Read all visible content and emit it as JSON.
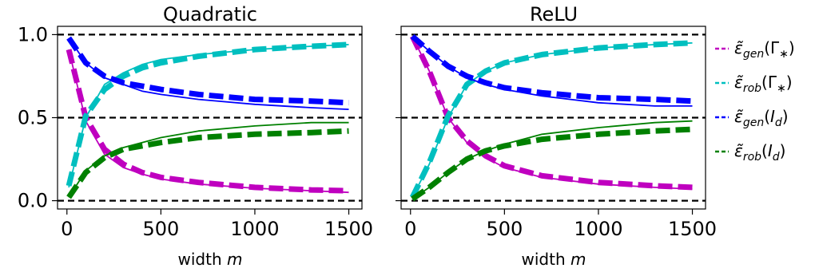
{
  "chart_data": [
    {
      "type": "line",
      "title": "Quadratic",
      "xlabel": "width m",
      "ylabel": "",
      "xlim": [
        -50,
        1570
      ],
      "ylim": [
        -0.05,
        1.05
      ],
      "xticks": [
        0,
        500,
        1000,
        1500
      ],
      "yticks": [
        0.0,
        0.5,
        1.0
      ],
      "reference_lines": [
        0.0,
        0.5,
        1.0
      ],
      "series": [
        {
          "name": "ε̃_gen(Γ*)",
          "color": "#bf00bf",
          "style": "solid-thin",
          "x": [
            10,
            100,
            200,
            300,
            400,
            500,
            700,
            1000,
            1300,
            1500
          ],
          "y": [
            0.91,
            0.48,
            0.28,
            0.2,
            0.16,
            0.13,
            0.1,
            0.075,
            0.06,
            0.05
          ]
        },
        {
          "name": "ε̃_gen(Γ*)",
          "color": "#bf00bf",
          "style": "dashed-thick",
          "x": [
            10,
            100,
            200,
            300,
            400,
            500,
            700,
            1000,
            1300,
            1500
          ],
          "y": [
            0.91,
            0.5,
            0.31,
            0.22,
            0.17,
            0.14,
            0.11,
            0.08,
            0.065,
            0.06
          ]
        },
        {
          "name": "ε̃_rob(Γ*)",
          "color": "#00bfbf",
          "style": "solid-thin",
          "x": [
            10,
            100,
            200,
            300,
            400,
            500,
            700,
            1000,
            1300,
            1500
          ],
          "y": [
            0.08,
            0.5,
            0.7,
            0.77,
            0.82,
            0.85,
            0.88,
            0.91,
            0.93,
            0.94
          ]
        },
        {
          "name": "ε̃_rob(Γ*)",
          "color": "#00bfbf",
          "style": "dashed-thick",
          "x": [
            10,
            100,
            200,
            300,
            400,
            500,
            700,
            1000,
            1300,
            1500
          ],
          "y": [
            0.09,
            0.51,
            0.67,
            0.75,
            0.8,
            0.83,
            0.87,
            0.91,
            0.93,
            0.94
          ]
        },
        {
          "name": "ε̃_gen(I_d)",
          "color": "#0000ff",
          "style": "solid-thin",
          "x": [
            10,
            100,
            200,
            300,
            400,
            500,
            700,
            1000,
            1300,
            1500
          ],
          "y": [
            0.98,
            0.83,
            0.74,
            0.7,
            0.66,
            0.64,
            0.61,
            0.58,
            0.56,
            0.55
          ]
        },
        {
          "name": "ε̃_gen(I_d)",
          "color": "#0000ff",
          "style": "dashed-thick",
          "x": [
            10,
            100,
            200,
            300,
            400,
            500,
            700,
            1000,
            1300,
            1500
          ],
          "y": [
            0.98,
            0.83,
            0.75,
            0.71,
            0.69,
            0.67,
            0.64,
            0.61,
            0.6,
            0.59
          ]
        },
        {
          "name": "ε̃_rob(I_d)",
          "color": "#008000",
          "style": "solid-thin",
          "x": [
            10,
            100,
            200,
            300,
            400,
            500,
            700,
            1000,
            1300,
            1500
          ],
          "y": [
            0.02,
            0.18,
            0.27,
            0.32,
            0.35,
            0.38,
            0.42,
            0.45,
            0.47,
            0.47
          ]
        },
        {
          "name": "ε̃_rob(I_d)",
          "color": "#008000",
          "style": "dashed-thick",
          "x": [
            10,
            100,
            200,
            300,
            400,
            500,
            700,
            1000,
            1300,
            1500
          ],
          "y": [
            0.02,
            0.17,
            0.26,
            0.31,
            0.33,
            0.35,
            0.38,
            0.4,
            0.41,
            0.42
          ]
        }
      ]
    },
    {
      "type": "line",
      "title": "ReLU",
      "xlabel": "width m",
      "ylabel": "",
      "xlim": [
        -50,
        1570
      ],
      "ylim": [
        -0.05,
        1.05
      ],
      "xticks": [
        0,
        500,
        1000,
        1500
      ],
      "yticks": [
        0.0,
        0.5,
        1.0
      ],
      "reference_lines": [
        0.0,
        0.5,
        1.0
      ],
      "series": [
        {
          "name": "ε̃_gen(Γ*)",
          "color": "#bf00bf",
          "style": "solid-thin",
          "x": [
            10,
            100,
            200,
            300,
            400,
            500,
            700,
            1000,
            1300,
            1500
          ],
          "y": [
            0.99,
            0.78,
            0.5,
            0.35,
            0.26,
            0.2,
            0.14,
            0.1,
            0.08,
            0.07
          ]
        },
        {
          "name": "ε̃_gen(Γ*)",
          "color": "#bf00bf",
          "style": "dashed-thick",
          "x": [
            10,
            100,
            200,
            300,
            400,
            500,
            700,
            1000,
            1300,
            1500
          ],
          "y": [
            0.99,
            0.78,
            0.5,
            0.36,
            0.27,
            0.21,
            0.15,
            0.11,
            0.09,
            0.08
          ]
        },
        {
          "name": "ε̃_rob(Γ*)",
          "color": "#00bfbf",
          "style": "solid-thin",
          "x": [
            10,
            100,
            200,
            300,
            400,
            500,
            700,
            1000,
            1300,
            1500
          ],
          "y": [
            0.02,
            0.22,
            0.5,
            0.7,
            0.78,
            0.83,
            0.88,
            0.92,
            0.94,
            0.95
          ]
        },
        {
          "name": "ε̃_rob(Γ*)",
          "color": "#00bfbf",
          "style": "dashed-thick",
          "x": [
            10,
            100,
            200,
            300,
            400,
            500,
            700,
            1000,
            1300,
            1500
          ],
          "y": [
            0.02,
            0.23,
            0.51,
            0.7,
            0.78,
            0.83,
            0.88,
            0.92,
            0.94,
            0.95
          ]
        },
        {
          "name": "ε̃_gen(I_d)",
          "color": "#0000ff",
          "style": "solid-thin",
          "x": [
            10,
            100,
            200,
            300,
            400,
            500,
            700,
            1000,
            1300,
            1500
          ],
          "y": [
            0.99,
            0.9,
            0.81,
            0.74,
            0.7,
            0.67,
            0.63,
            0.59,
            0.57,
            0.57
          ]
        },
        {
          "name": "ε̃_gen(I_d)",
          "color": "#0000ff",
          "style": "dashed-thick",
          "x": [
            10,
            100,
            200,
            300,
            400,
            500,
            700,
            1000,
            1300,
            1500
          ],
          "y": [
            0.99,
            0.9,
            0.81,
            0.75,
            0.71,
            0.68,
            0.65,
            0.62,
            0.61,
            0.6
          ]
        },
        {
          "name": "ε̃_rob(I_d)",
          "color": "#008000",
          "style": "solid-thin",
          "x": [
            10,
            100,
            200,
            300,
            400,
            500,
            700,
            1000,
            1300,
            1500
          ],
          "y": [
            0.01,
            0.08,
            0.17,
            0.25,
            0.3,
            0.34,
            0.4,
            0.44,
            0.47,
            0.48
          ]
        },
        {
          "name": "ε̃_rob(I_d)",
          "color": "#008000",
          "style": "dashed-thick",
          "x": [
            10,
            100,
            200,
            300,
            400,
            500,
            700,
            1000,
            1300,
            1500
          ],
          "y": [
            0.01,
            0.08,
            0.17,
            0.25,
            0.3,
            0.33,
            0.37,
            0.4,
            0.42,
            0.43
          ]
        }
      ]
    }
  ],
  "legend": {
    "placement": "right",
    "entries": [
      {
        "label": "ε̃_gen(Γ*)",
        "color": "#bf00bf"
      },
      {
        "label": "ε̃_rob(Γ*)",
        "color": "#00bfbf"
      },
      {
        "label": "ε̃_gen(I_d)",
        "color": "#0000ff"
      },
      {
        "label": "ε̃_rob(I_d)",
        "color": "#008000"
      }
    ]
  }
}
